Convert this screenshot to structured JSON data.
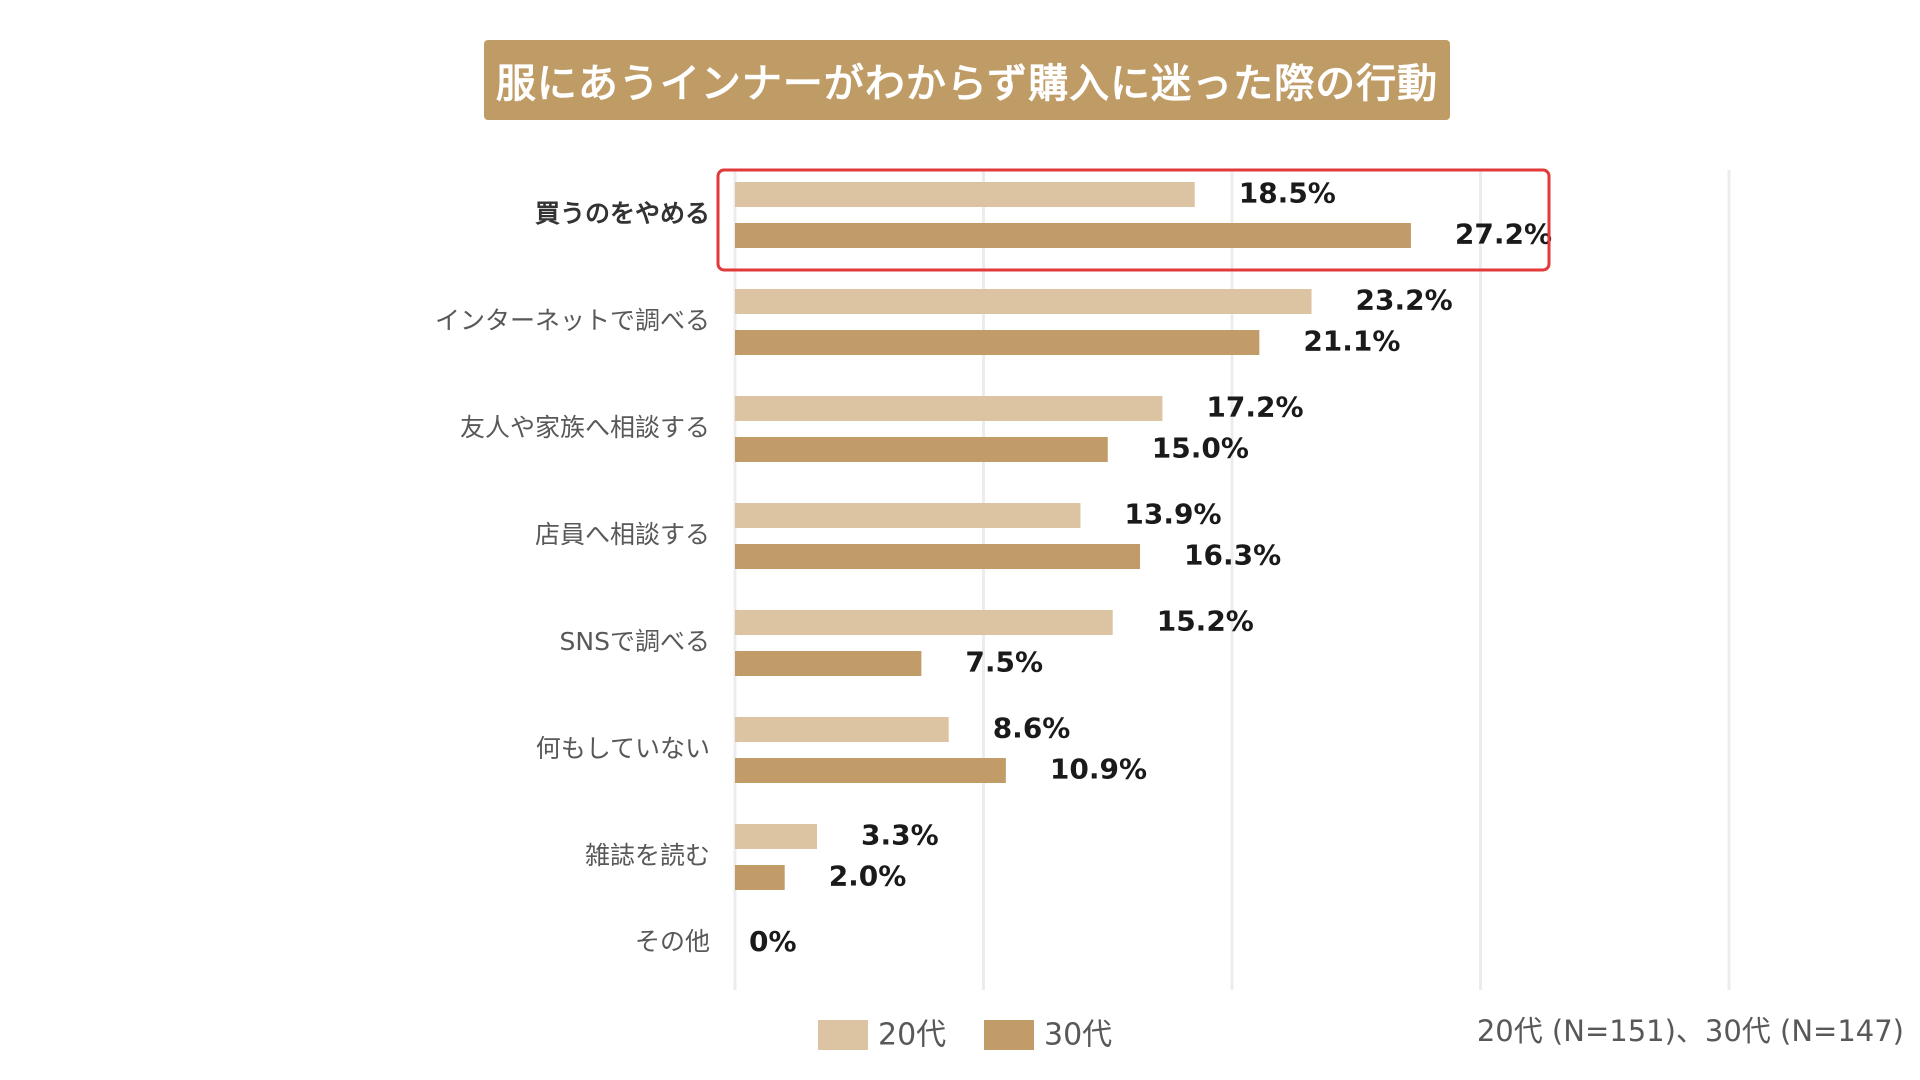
{
  "chart_data": {
    "type": "bar",
    "orientation": "horizontal",
    "title": "服にあうインナーがわからず購入に迷った際の行動",
    "categories": [
      "買うのをやめる",
      "インターネットで調べる",
      "友人や家族へ相談する",
      "店員へ相談する",
      "SNSで調べる",
      "何もしていない",
      "雑誌を読む",
      "その他"
    ],
    "series": [
      {
        "name": "20代",
        "values": [
          18.5,
          23.2,
          17.2,
          13.9,
          15.2,
          8.6,
          3.3,
          0
        ],
        "labels": [
          "18.5%",
          "23.2%",
          "17.2%",
          "13.9%",
          "15.2%",
          "8.6%",
          "3.3%",
          ""
        ],
        "color": "#dcc3a2"
      },
      {
        "name": "30代",
        "values": [
          27.2,
          21.1,
          15.0,
          16.3,
          7.5,
          10.9,
          2.0,
          0
        ],
        "labels": [
          "27.2%",
          "21.1%",
          "15.0%",
          "16.3%",
          "7.5%",
          "10.9%",
          "2.0%",
          ""
        ],
        "color": "#c19b68"
      }
    ],
    "combined_labels": [
      "",
      "",
      "",
      "",
      "",
      "",
      "",
      "0%"
    ],
    "highlighted_category": "買うのをやめる",
    "highlight_color": "#e03a3a",
    "xlim": [
      0,
      40
    ],
    "grid": true,
    "legend_position": "bottom",
    "note": "20代 (N=151)、30代 (N=147)"
  },
  "colors": {
    "title_bg": "#bf9b66",
    "text": "#58585a",
    "value_text": "#1a1a1a",
    "grid": "#ececec"
  }
}
